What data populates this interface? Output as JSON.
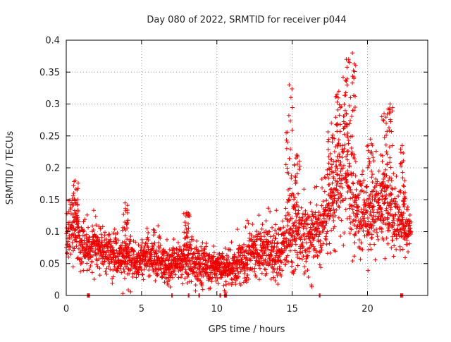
{
  "chart_data": {
    "type": "scatter",
    "title": "Day 080 of 2022, SRMTID for receiver p044",
    "xlabel": "GPS time / hours",
    "ylabel": "SRMTID / TECUs",
    "xlim": [
      0,
      24
    ],
    "ylim": [
      0,
      0.4
    ],
    "xticks": [
      0,
      5,
      10,
      15,
      20
    ],
    "xtick_labels": [
      "0",
      "5",
      "10",
      "15",
      "20"
    ],
    "yticks": [
      0,
      0.05,
      0.1,
      0.15,
      0.2,
      0.25,
      0.3,
      0.35,
      0.4
    ],
    "ytick_labels": [
      "0",
      "0.05",
      "0.1",
      "0.15",
      "0.2",
      "0.25",
      "0.3",
      "0.35",
      "0.4"
    ],
    "grid": true,
    "marker": "+",
    "color": "#ee0000",
    "x_range_observed": [
      0,
      22.9
    ],
    "envelope": {
      "x": [
        0,
        0.5,
        1,
        1.5,
        2,
        2.5,
        3,
        3.5,
        4,
        4.5,
        5,
        5.5,
        6,
        6.5,
        7,
        7.5,
        8,
        8.5,
        9,
        9.5,
        10,
        10.5,
        11,
        11.5,
        12,
        12.5,
        13,
        13.5,
        14,
        14.5,
        14.8,
        15,
        15.5,
        16,
        16.5,
        17,
        17.5,
        18,
        18.5,
        19,
        19.5,
        20,
        20.5,
        21,
        21.5,
        22,
        22.5,
        22.9
      ],
      "center": [
        0.1,
        0.1,
        0.08,
        0.07,
        0.075,
        0.07,
        0.07,
        0.06,
        0.065,
        0.055,
        0.06,
        0.06,
        0.06,
        0.05,
        0.05,
        0.05,
        0.055,
        0.055,
        0.05,
        0.045,
        0.045,
        0.045,
        0.045,
        0.05,
        0.055,
        0.07,
        0.075,
        0.07,
        0.06,
        0.08,
        0.1,
        0.09,
        0.1,
        0.1,
        0.1,
        0.11,
        0.14,
        0.17,
        0.19,
        0.16,
        0.12,
        0.12,
        0.13,
        0.14,
        0.13,
        0.12,
        0.1,
        0.1
      ],
      "spread": [
        0.045,
        0.045,
        0.035,
        0.03,
        0.035,
        0.03,
        0.03,
        0.028,
        0.03,
        0.028,
        0.028,
        0.03,
        0.03,
        0.028,
        0.025,
        0.025,
        0.03,
        0.03,
        0.028,
        0.025,
        0.025,
        0.025,
        0.025,
        0.028,
        0.03,
        0.035,
        0.04,
        0.04,
        0.04,
        0.045,
        0.05,
        0.05,
        0.05,
        0.045,
        0.045,
        0.05,
        0.055,
        0.07,
        0.085,
        0.075,
        0.05,
        0.05,
        0.05,
        0.055,
        0.05,
        0.05,
        0.03,
        0.02
      ]
    },
    "peaks": [
      {
        "x": 0.6,
        "y": 0.18
      },
      {
        "x": 3.9,
        "y": 0.145
      },
      {
        "x": 8.0,
        "y": 0.13
      },
      {
        "x": 14.8,
        "y": 0.33
      },
      {
        "x": 15.3,
        "y": 0.22
      },
      {
        "x": 17.6,
        "y": 0.27
      },
      {
        "x": 18.1,
        "y": 0.32
      },
      {
        "x": 18.6,
        "y": 0.37
      },
      {
        "x": 19.0,
        "y": 0.38
      },
      {
        "x": 20.2,
        "y": 0.245
      },
      {
        "x": 21.1,
        "y": 0.285
      },
      {
        "x": 21.5,
        "y": 0.3
      },
      {
        "x": 22.3,
        "y": 0.235
      }
    ],
    "zero_points_x": [
      1.4,
      1.5,
      7.0,
      8.1,
      8.8,
      10.2,
      10.5,
      10.6,
      16.8,
      22.2,
      22.3
    ]
  }
}
